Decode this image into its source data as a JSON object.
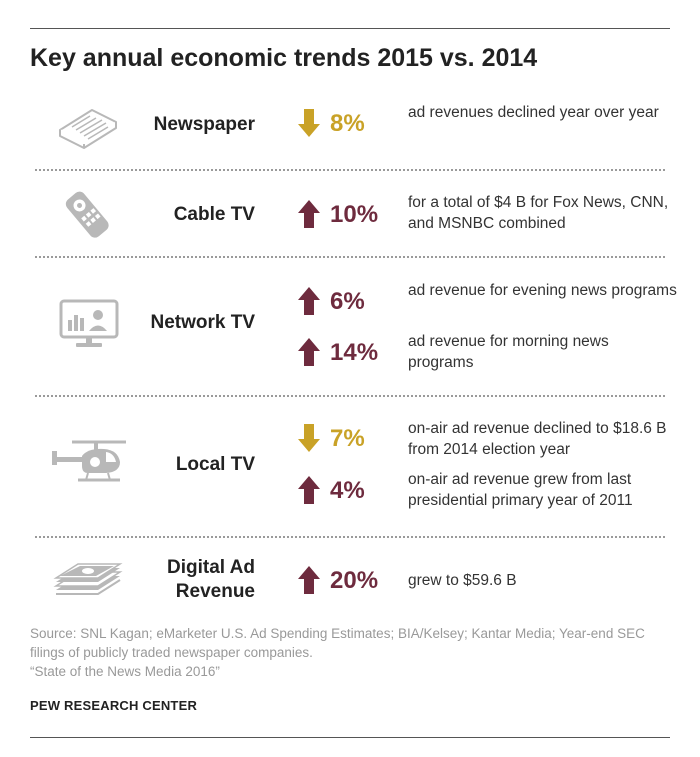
{
  "title": "Key annual economic trends 2015 vs. 2014",
  "colors": {
    "down": "#c9a227",
    "up": "#6e2b3e",
    "icon": "#b8b8b8"
  },
  "rows": [
    {
      "label": "Newspaper",
      "icon": "newspaper-icon",
      "items": [
        {
          "direction": "down",
          "value": "8%",
          "desc": "ad revenues declined year over year"
        }
      ]
    },
    {
      "label": "Cable TV",
      "icon": "remote-control-icon",
      "items": [
        {
          "direction": "up",
          "value": "10%",
          "desc": "for a total of $4 B for Fox News, CNN, and MSNBC combined"
        }
      ]
    },
    {
      "label": "Network TV",
      "icon": "television-icon",
      "items": [
        {
          "direction": "up",
          "value": "6%",
          "desc": "ad revenue for evening news programs"
        },
        {
          "direction": "up",
          "value": "14%",
          "desc": "ad revenue for morning news programs"
        }
      ]
    },
    {
      "label": "Local TV",
      "icon": "helicopter-icon",
      "items": [
        {
          "direction": "down",
          "value": "7%",
          "desc": "on-air ad revenue declined to $18.6 B from 2014 election year"
        },
        {
          "direction": "up",
          "value": "4%",
          "desc": "on-air ad revenue grew from last presidential primary year of 2011"
        }
      ]
    },
    {
      "label": "Digital Ad Revenue",
      "label_lines": [
        "Digital Ad",
        "Revenue"
      ],
      "icon": "money-stack-icon",
      "items": [
        {
          "direction": "up",
          "value": "20%",
          "desc": "grew to $59.6 B"
        }
      ]
    }
  ],
  "source_lines": [
    "Source: SNL Kagan; eMarketer U.S. Ad Spending Estimates; BIA/Kelsey; Kantar Media; Year-end SEC filings of publicly traded newspaper companies.",
    "“State of the News Media 2016”"
  ],
  "organization": "PEW RESEARCH CENTER"
}
